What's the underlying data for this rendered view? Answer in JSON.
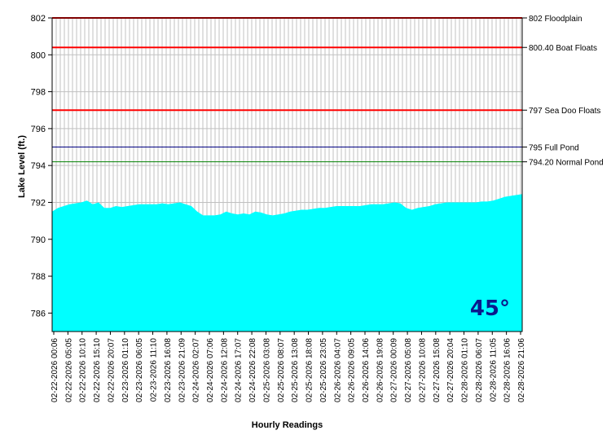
{
  "chart_data": {
    "type": "area",
    "xlabel": "Hourly Readings",
    "ylabel": "Lake Level (ft.)",
    "ylim": [
      785,
      802
    ],
    "yticks": [
      786,
      788,
      790,
      792,
      794,
      796,
      798,
      800,
      802
    ],
    "grid": true,
    "fill_color": "#00ffff",
    "x_tick_labels": [
      "02-22-2026 00:06",
      "02-22-2026 05:05",
      "02-22-2026 10:10",
      "02-22-2026 15:10",
      "02-22-2026 20:07",
      "02-23-2026 01:10",
      "02-23-2026 06:05",
      "02-23-2026 11:10",
      "02-23-2026 16:08",
      "02-23-2026 21:09",
      "02-24-2026 02:07",
      "02-24-2026 07:06",
      "02-24-2026 12:08",
      "02-24-2026 17:07",
      "02-24-2026 22:08",
      "02-25-2026 03:08",
      "02-25-2026 08:07",
      "02-25-2026 13:08",
      "02-25-2026 18:08",
      "02-25-2026 23:05",
      "02-26-2026 04:07",
      "02-26-2026 09:05",
      "02-26-2026 14:06",
      "02-26-2026 19:08",
      "02-27-2026 00:09",
      "02-27-2026 05:08",
      "02-27-2026 10:08",
      "02-27-2026 15:08",
      "02-27-2026 20:04",
      "02-28-2026 01:10",
      "02-28-2026 06:07",
      "02-28-2026 11:05",
      "02-28-2026 16:06",
      "02-28-2026 21:06"
    ],
    "values": [
      791.5,
      791.7,
      791.8,
      791.9,
      791.95,
      792.0,
      792.1,
      791.9,
      792.0,
      791.7,
      791.7,
      791.8,
      791.75,
      791.8,
      791.85,
      791.9,
      791.9,
      791.9,
      791.9,
      791.95,
      791.9,
      791.95,
      792.0,
      791.9,
      791.8,
      791.5,
      791.3,
      791.3,
      791.3,
      791.35,
      791.5,
      791.4,
      791.35,
      791.4,
      791.35,
      791.5,
      791.45,
      791.35,
      791.3,
      791.35,
      791.4,
      791.5,
      791.55,
      791.6,
      791.6,
      791.65,
      791.7,
      791.7,
      791.75,
      791.8,
      791.8,
      791.8,
      791.8,
      791.8,
      791.85,
      791.9,
      791.9,
      791.9,
      791.95,
      792.0,
      791.95,
      791.7,
      791.6,
      791.7,
      791.75,
      791.8,
      791.9,
      791.95,
      792.0,
      792.0,
      792.0,
      792.0,
      792.0,
      792.0,
      792.05,
      792.05,
      792.1,
      792.2,
      792.3,
      792.35,
      792.4,
      792.45
    ],
    "reference_lines": [
      {
        "value": 802,
        "label": "802 Floodplain",
        "color": "#ff0000"
      },
      {
        "value": 800.4,
        "label": "800.40 Boat Floats",
        "color": "#ff0000"
      },
      {
        "value": 797,
        "label": "797 Sea Doo Floats",
        "color": "#ff0000"
      },
      {
        "value": 795,
        "label": "795 Full Pond",
        "color": "#000080"
      },
      {
        "value": 794.2,
        "label": "794.20 Normal Pond",
        "color": "#008000"
      }
    ],
    "annotation": "45°"
  }
}
